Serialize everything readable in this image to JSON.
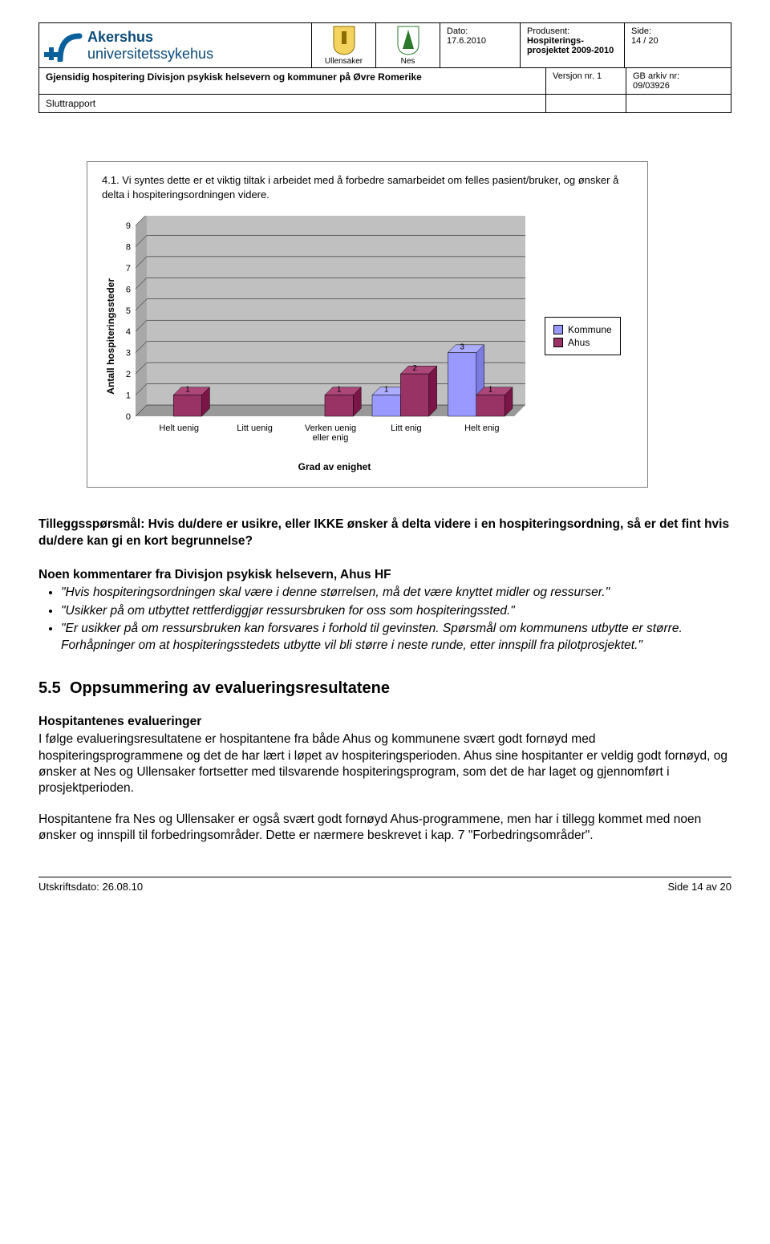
{
  "header": {
    "org_line1": "Akershus",
    "org_line2": "universitetssykehus",
    "muni1": "Ullensaker",
    "muni2": "Nes",
    "date_label": "Dato:",
    "date_value": "17.6.2010",
    "prod_label": "Produsent:",
    "prod_value": "Hospiterings-prosjektet 2009-2010",
    "side_label": "Side:",
    "side_value": "14 / 20",
    "title": "Gjensidig hospitering Divisjon psykisk helsevern og kommuner på Øvre Romerike",
    "version_label": "Versjon nr. 1",
    "arkiv_label": "GB arkiv nr:",
    "arkiv_value": "09/03926",
    "subtitle": "Sluttrapport"
  },
  "chart": {
    "title": "4.1. Vi syntes dette er et viktig tiltak i arbeidet med å forbedre samarbeidet om felles pasient/bruker, og ønsker å delta i hospiteringsordningen videre.",
    "ylabel": "Antall hospiteringssteder",
    "xlabel": "Grad av enighet",
    "type": "bar",
    "categories": [
      "Helt uenig",
      "Litt uenig",
      "Verken uenig eller enig",
      "Litt enig",
      "Helt enig"
    ],
    "series": [
      {
        "name": "Kommune",
        "color": "#9999ff",
        "values": [
          0,
          0,
          0,
          1,
          3
        ]
      },
      {
        "name": "Ahus",
        "color": "#993366",
        "values": [
          1,
          0,
          1,
          2,
          1
        ]
      }
    ],
    "ylim": [
      0,
      9
    ],
    "ytick_step": 1,
    "background_color": "#c0c0c0",
    "wall_color": "#ffffff",
    "grid_color": "#000000",
    "bar_edge_color": "#000000",
    "font_size_axis": 11,
    "font_size_label": 12,
    "bar_group_gap": 0.25
  },
  "body": {
    "tillegg_label": "Tilleggsspørsmål: Hvis du/dere er usikre, eller IKKE ønsker å delta videre i en hospiteringsordning, så er det fint hvis du/dere kan gi en kort begrunnelse?",
    "noen_head": "Noen kommentarer fra Divisjon psykisk helsevern, Ahus HF",
    "bul1": "\"Hvis hospiteringsordningen skal være i denne størrelsen, må det være knyttet midler og ressurser.\"",
    "bul2": "\"Usikker på om utbyttet rettferdiggjør ressursbruken for oss som hospiteringssted.\"",
    "bul3": "\"Er usikker på om ressursbruken kan forsvares i forhold til gevinsten. Spørsmål om kommunens utbytte er større. Forhåpninger om at hospiteringsstedets utbytte vil bli større i neste runde, etter innspill fra pilotprosjektet.\"",
    "sec_num": "5.5",
    "sec_title": "Oppsummering av evalueringsresultatene",
    "hosp_head": "Hospitantenes evalueringer",
    "para1": "I følge evalueringsresultatene er hospitantene fra både Ahus og kommunene svært godt fornøyd med hospiteringsprogrammene og det de har lært i løpet av hospiteringsperioden. Ahus sine hospitanter er veldig godt fornøyd, og ønsker at Nes og Ullensaker fortsetter med tilsvarende hospiteringsprogram, som det de har laget og gjennomført i prosjektperioden.",
    "para2": "Hospitantene fra Nes og Ullensaker er også svært godt fornøyd Ahus-programmene, men har i tillegg kommet med noen ønsker og innspill til forbedringsområder. Dette er nærmere beskrevet i kap. 7 \"Forbedringsområder\"."
  },
  "footer": {
    "left": "Utskriftsdato: 26.08.10",
    "right": "Side 14 av 20"
  }
}
